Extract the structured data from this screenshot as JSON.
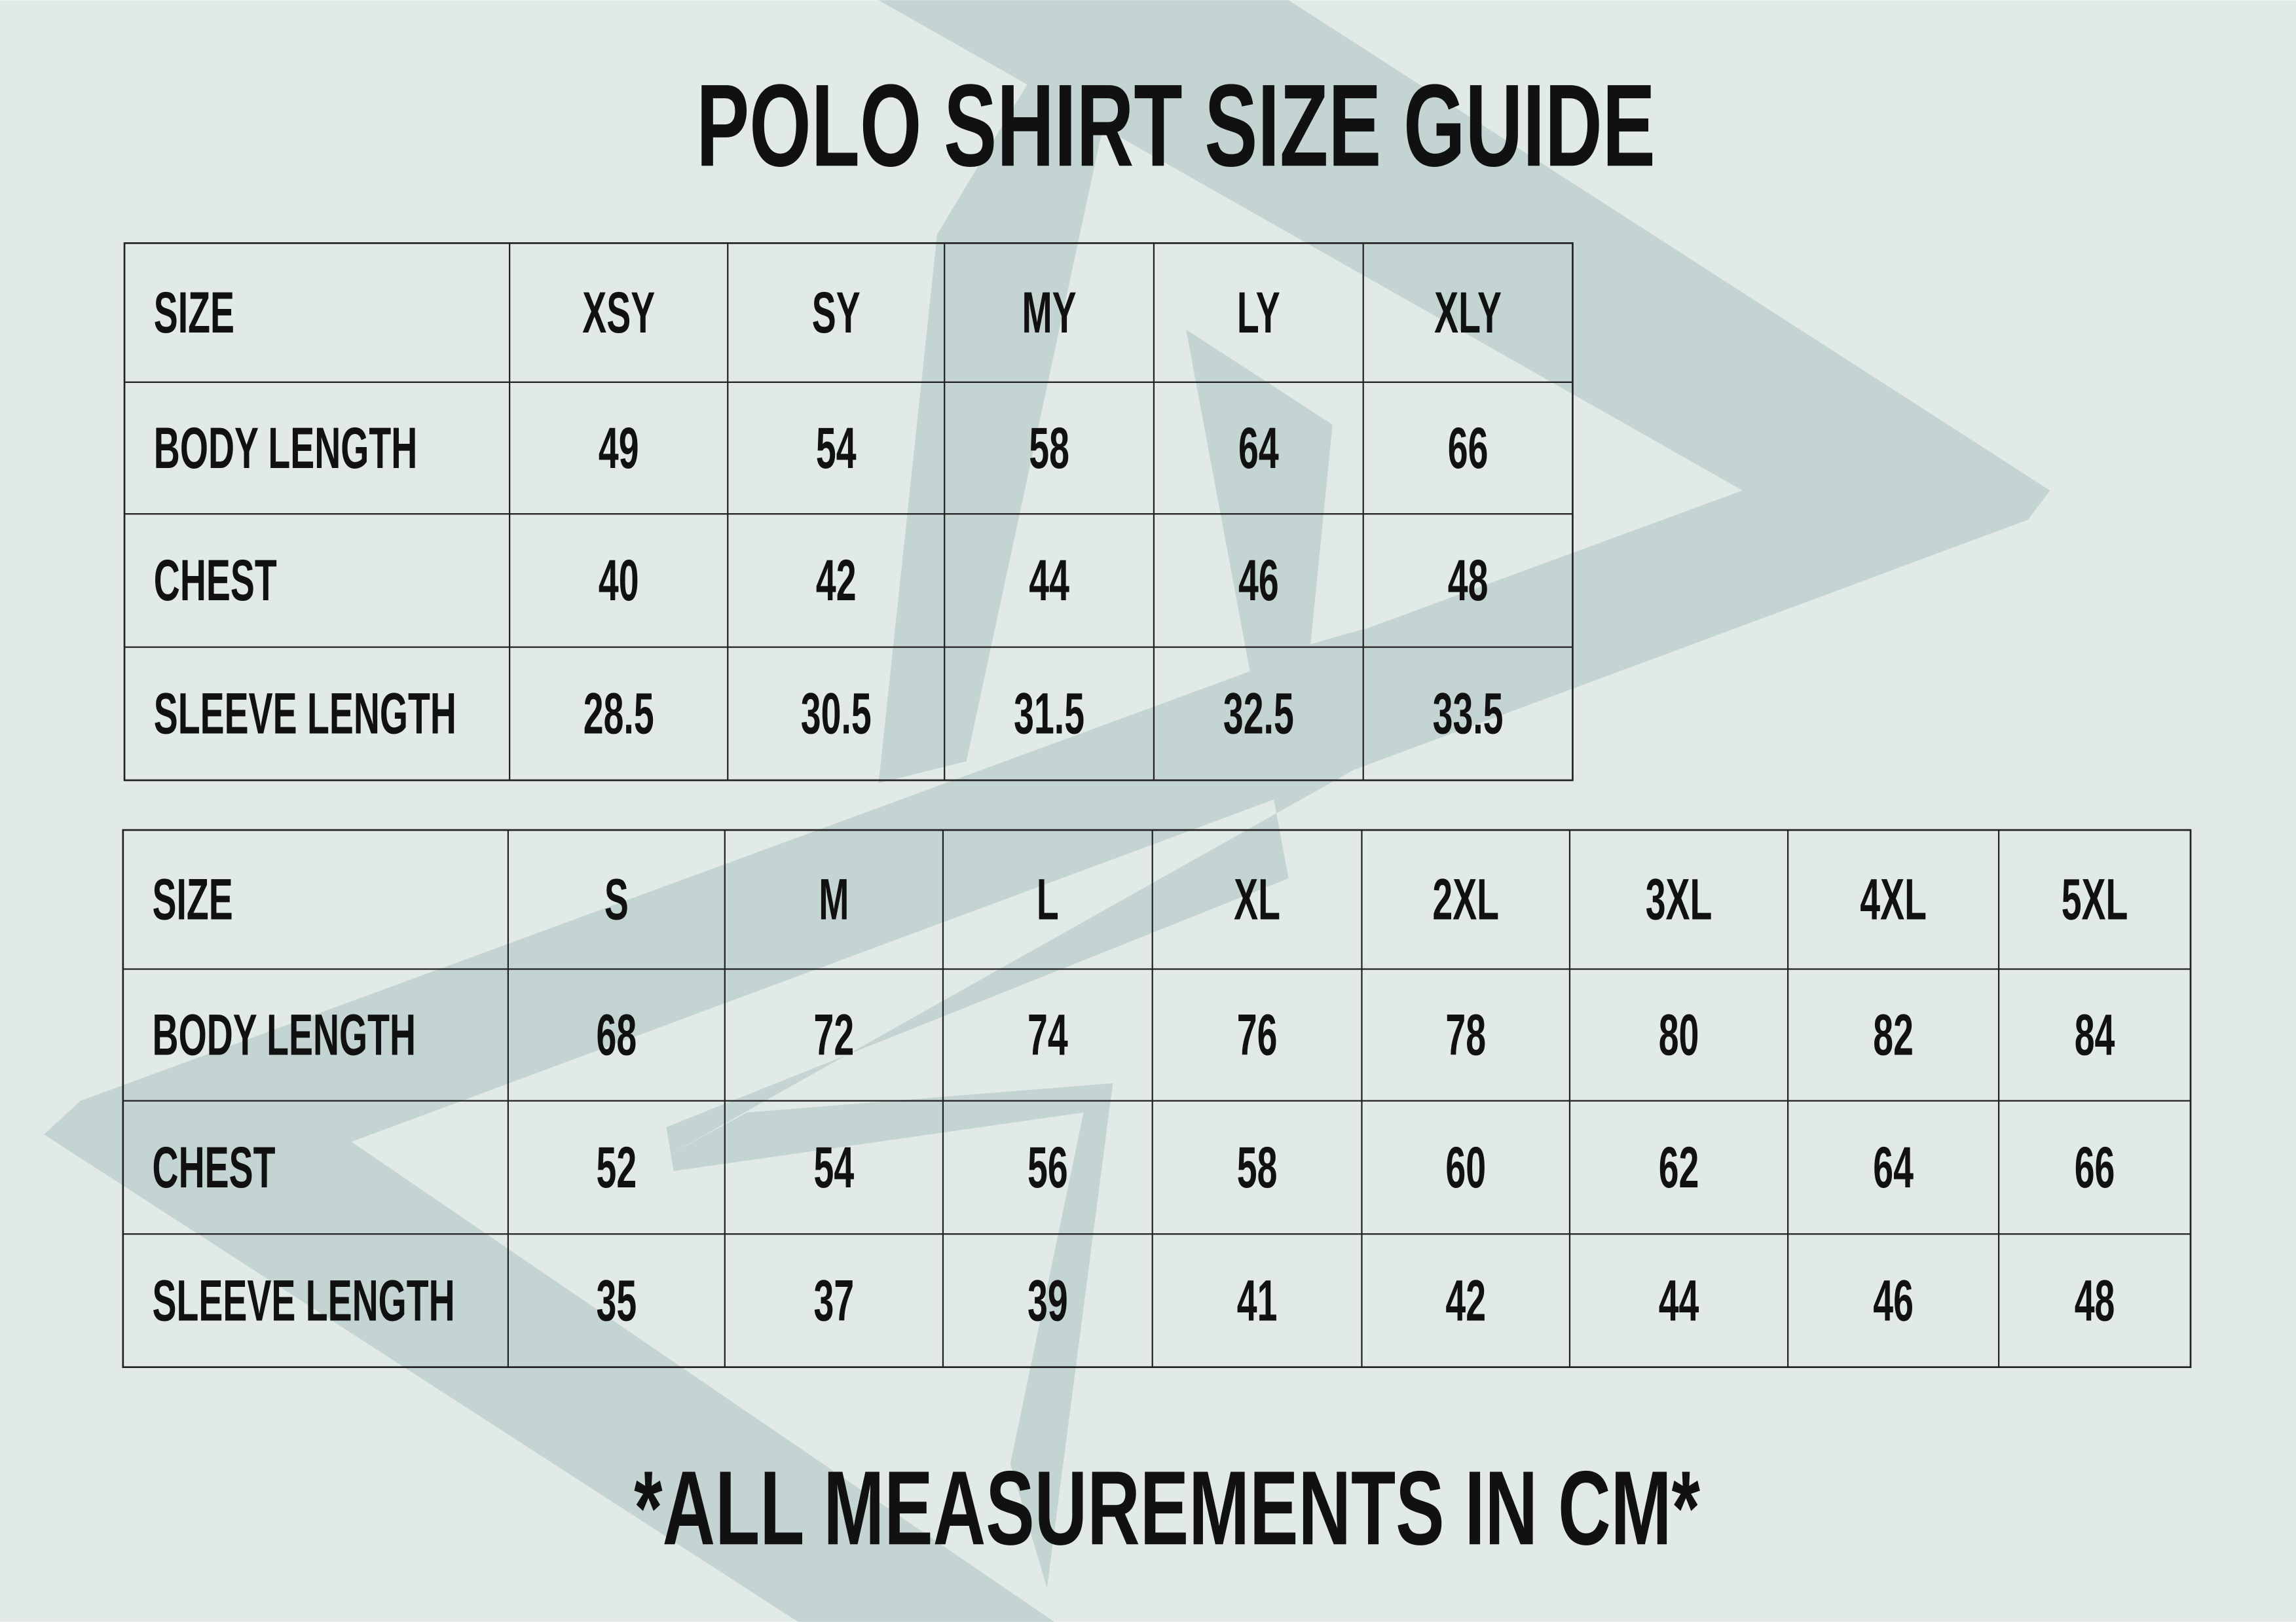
{
  "title": "POLO SHIRT SIZE GUIDE",
  "table1": {
    "header": [
      "SIZE",
      "XSY",
      "SY",
      "MY",
      "LY",
      "XLY"
    ],
    "rows": [
      [
        "BODY LENGTH",
        49,
        54,
        58,
        64,
        66
      ],
      [
        "CHEST",
        40,
        42,
        44,
        46,
        48
      ],
      [
        "SLEEVE LENGTH",
        28.5,
        30.5,
        31.5,
        32.5,
        33.5
      ]
    ]
  },
  "table2": {
    "header": [
      "SIZE",
      "S",
      "M",
      "L",
      "XL",
      "2XL",
      "3XL",
      "4XL",
      "5XL"
    ],
    "rows": [
      [
        "BODY LENGTH",
        68,
        72,
        74,
        76,
        78,
        80,
        82,
        84
      ],
      [
        "CHEST",
        52,
        54,
        56,
        58,
        60,
        62,
        64,
        66
      ],
      [
        "SLEEVE LENGTH",
        35,
        37,
        39,
        41,
        42,
        44,
        46,
        48
      ]
    ]
  },
  "footnote": "*ALL MEASUREMENTS IN CM*"
}
